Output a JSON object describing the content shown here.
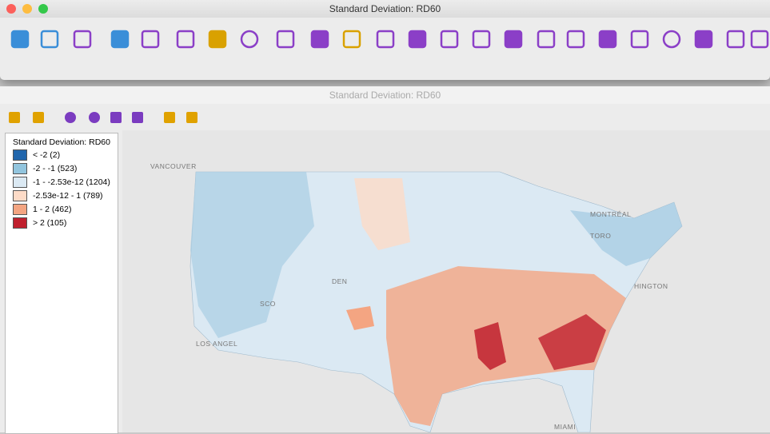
{
  "main_window": {
    "title": "Standard Deviation: RD60"
  },
  "map_window": {
    "title": "Standard Deviation: RD60"
  },
  "legend": {
    "title": "Standard Deviation: RD60",
    "items": [
      {
        "label": "< -2 (2)",
        "color": "#2166ac"
      },
      {
        "label": "-2 - -1 (523)",
        "color": "#92c5de"
      },
      {
        "label": "-1 - -2.53e-12 (1204)",
        "color": "#dbe9f3"
      },
      {
        "label": "-2.53e-12 - 1 (789)",
        "color": "#fddbc7"
      },
      {
        "label": "1 - 2 (462)",
        "color": "#f4a582"
      },
      {
        "label": "> 2 (105)",
        "color": "#c0202e"
      }
    ]
  },
  "map_labels": [
    "VANCOUVER",
    "MONTRÉAL",
    "TORO",
    "HINGTON",
    "SCO",
    "LOS ANGEL",
    "DEN",
    "MIAMI"
  ]
}
